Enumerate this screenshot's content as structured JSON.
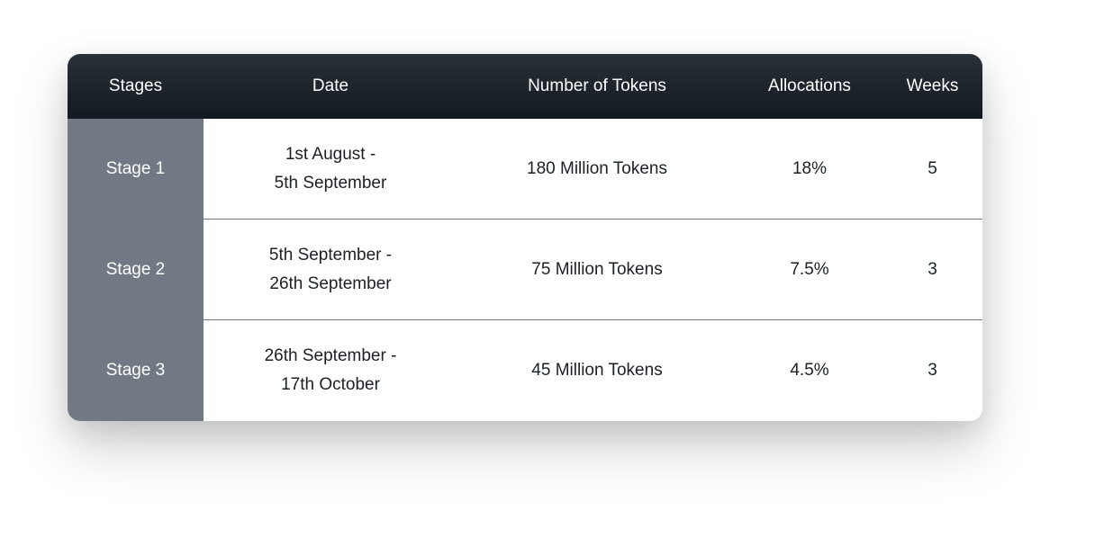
{
  "table": {
    "headers": {
      "stages": "Stages",
      "date": "Date",
      "tokens": "Number of Tokens",
      "allocations": "Allocations",
      "weeks": "Weeks"
    },
    "rows": [
      {
        "stage": "Stage 1",
        "date_line1": "1st August -",
        "date_line2": "5th September",
        "tokens": "180 Million Tokens",
        "allocation": "18%",
        "weeks": "5"
      },
      {
        "stage": "Stage 2",
        "date_line1": "5th September -",
        "date_line2": "26th September",
        "tokens": "75 Million Tokens",
        "allocation": "7.5%",
        "weeks": "3"
      },
      {
        "stage": "Stage 3",
        "date_line1": "26th September -",
        "date_line2": "17th October",
        "tokens": "45 Million Tokens",
        "allocation": "4.5%",
        "weeks": "3"
      }
    ]
  },
  "colors": {
    "header_bg": "#1b2128",
    "stage_column_bg": "#717a84",
    "body_text": "#1b2027",
    "divider": "#6f757c"
  }
}
